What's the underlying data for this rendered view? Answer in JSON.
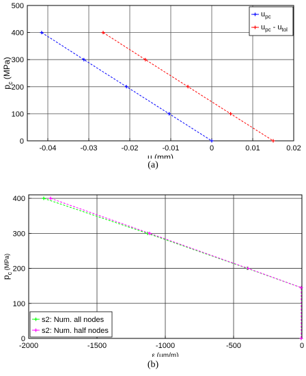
{
  "chart_data": [
    {
      "type": "line",
      "caption": "(a)",
      "xlabel": "u (mm)",
      "ylabel": "p",
      "ylabel_sub": "c",
      "ylabel_unit": " (MPa)",
      "xlim": [
        -0.045,
        0.02
      ],
      "ylim": [
        0,
        500
      ],
      "xticks": [
        -0.04,
        -0.03,
        -0.02,
        -0.01,
        0,
        0.01,
        0.02
      ],
      "yticks": [
        0,
        100,
        200,
        300,
        400,
        500
      ],
      "xtick_labels": [
        "-0.04",
        "-0.03",
        "-0.02",
        "-0.01",
        "0",
        "0.01",
        "0.02"
      ],
      "ytick_labels": [
        "0",
        "100",
        "200",
        "300",
        "400",
        "500"
      ],
      "grid": true,
      "legend_position": "top-right",
      "series": [
        {
          "name": "u",
          "name_sub": "pc",
          "color": "#0000ff",
          "x": [
            -0.0415,
            -0.0312,
            -0.0208,
            -0.0104,
            0
          ],
          "y": [
            400,
            300,
            200,
            100,
            0
          ]
        },
        {
          "name": "u",
          "name_sub": "pc",
          "name_mid": " - u",
          "name_sub2": "tol",
          "color": "#ff0000",
          "x": [
            -0.0265,
            -0.0162,
            -0.0058,
            0.0046,
            0.015
          ],
          "y": [
            400,
            300,
            200,
            100,
            0
          ]
        }
      ]
    },
    {
      "type": "line",
      "caption": "(b)",
      "xlabel": "ε (μm/m)",
      "ylabel": "p",
      "ylabel_sub": "c",
      "ylabel_unit": " (MPa)",
      "xlim": [
        -2000,
        0
      ],
      "ylim": [
        0,
        410
      ],
      "xticks": [
        -2000,
        -1500,
        -1000,
        -500,
        0
      ],
      "yticks": [
        0,
        100,
        200,
        300,
        400
      ],
      "xtick_labels": [
        "-2000",
        "-1500",
        "-1000",
        "-500",
        "0"
      ],
      "ytick_labels": [
        "0",
        "100",
        "200",
        "300",
        "400"
      ],
      "grid": true,
      "legend_position": "bottom-left",
      "series": [
        {
          "name": "s2: Num. all nodes",
          "color": "#00ff00",
          "x": [
            -1890,
            -1130,
            -400,
            -5,
            -5
          ],
          "y": [
            400,
            300,
            200,
            145,
            0
          ]
        },
        {
          "name": "s2: Num. half nodes",
          "color": "#ff00ff",
          "x": [
            -1840,
            -1115,
            -395,
            -5,
            -5
          ],
          "y": [
            400,
            300,
            200,
            145,
            0
          ]
        }
      ]
    }
  ]
}
